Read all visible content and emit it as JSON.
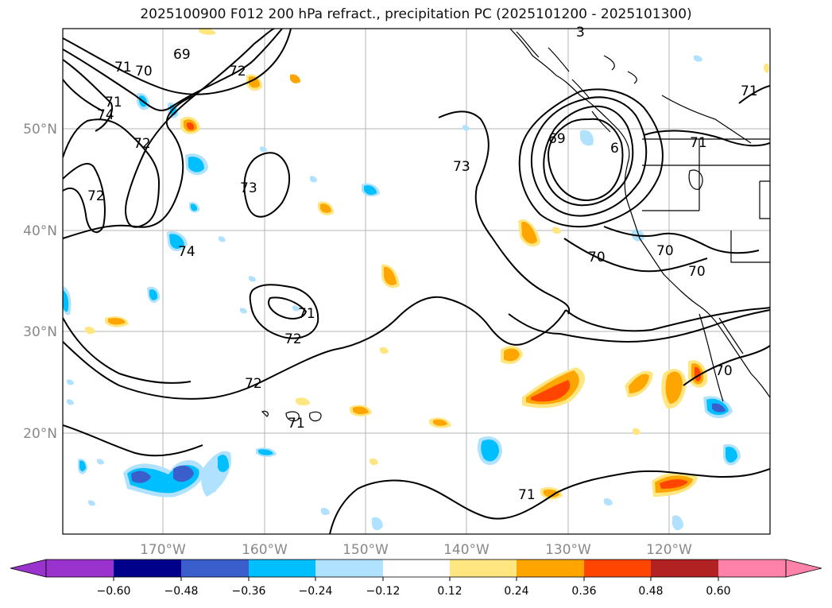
{
  "title": "2025100900 F012 200 hPa refract., precipitation PC (2025101200 - 2025101300)",
  "lat_labels": [
    "50°N",
    "40°N",
    "30°N",
    "20°N"
  ],
  "lon_labels": [
    "170°W",
    "160°W",
    "150°W",
    "140°W",
    "130°W",
    "120°W"
  ],
  "contour_labels": [
    "69",
    "70",
    "71",
    "72",
    "73",
    "74",
    "3",
    "6"
  ],
  "colorbar": {
    "ticks": [
      "−0.60",
      "−0.48",
      "−0.36",
      "−0.24",
      "−0.12",
      "0.12",
      "0.24",
      "0.36",
      "0.48",
      "0.60"
    ],
    "colors": [
      "#9a32cd",
      "#00008b",
      "#3a5fcd",
      "#00bfff",
      "#b0e2ff",
      "#ffffff",
      "#ffe680",
      "#ffa500",
      "#ff4500",
      "#b22222",
      "#ff82ab"
    ]
  }
}
